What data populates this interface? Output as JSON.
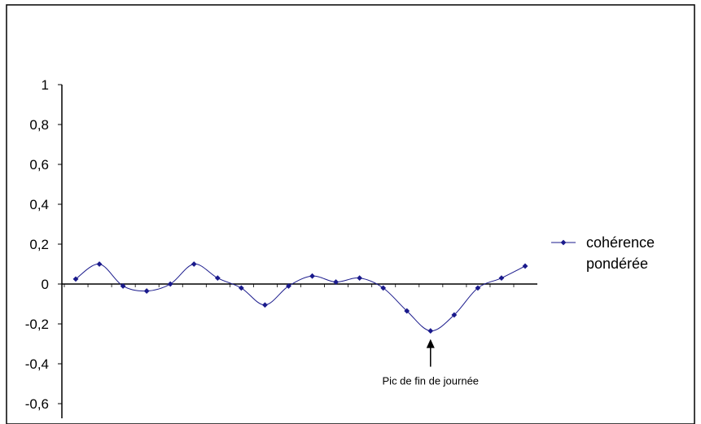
{
  "chart_data": {
    "type": "line",
    "title": "",
    "xlabel": "",
    "ylabel": "",
    "ylim": [
      -0.6,
      1
    ],
    "y_ticks": [
      "1",
      "0,8",
      "0,6",
      "0,4",
      "0,2",
      "0",
      "-0,2",
      "-0,4",
      "-0,6"
    ],
    "y_tick_values": [
      1,
      0.8,
      0.6,
      0.4,
      0.2,
      0,
      -0.2,
      -0.4,
      -0.6
    ],
    "x_tick_labels_shown": false,
    "grid": false,
    "legend_position": "right",
    "series": [
      {
        "name": "cohérence pondérée",
        "color": "#1a1a8c",
        "marker": "diamond",
        "values": [
          0.025,
          0.1,
          -0.01,
          -0.035,
          0.0,
          0.1,
          0.03,
          -0.02,
          -0.105,
          -0.01,
          0.04,
          0.01,
          0.03,
          -0.02,
          -0.135,
          -0.235,
          -0.155,
          -0.02,
          0.03,
          0.09
        ]
      }
    ],
    "annotations": [
      {
        "text": "Pic de fin de journée",
        "point_index": 15
      }
    ]
  }
}
